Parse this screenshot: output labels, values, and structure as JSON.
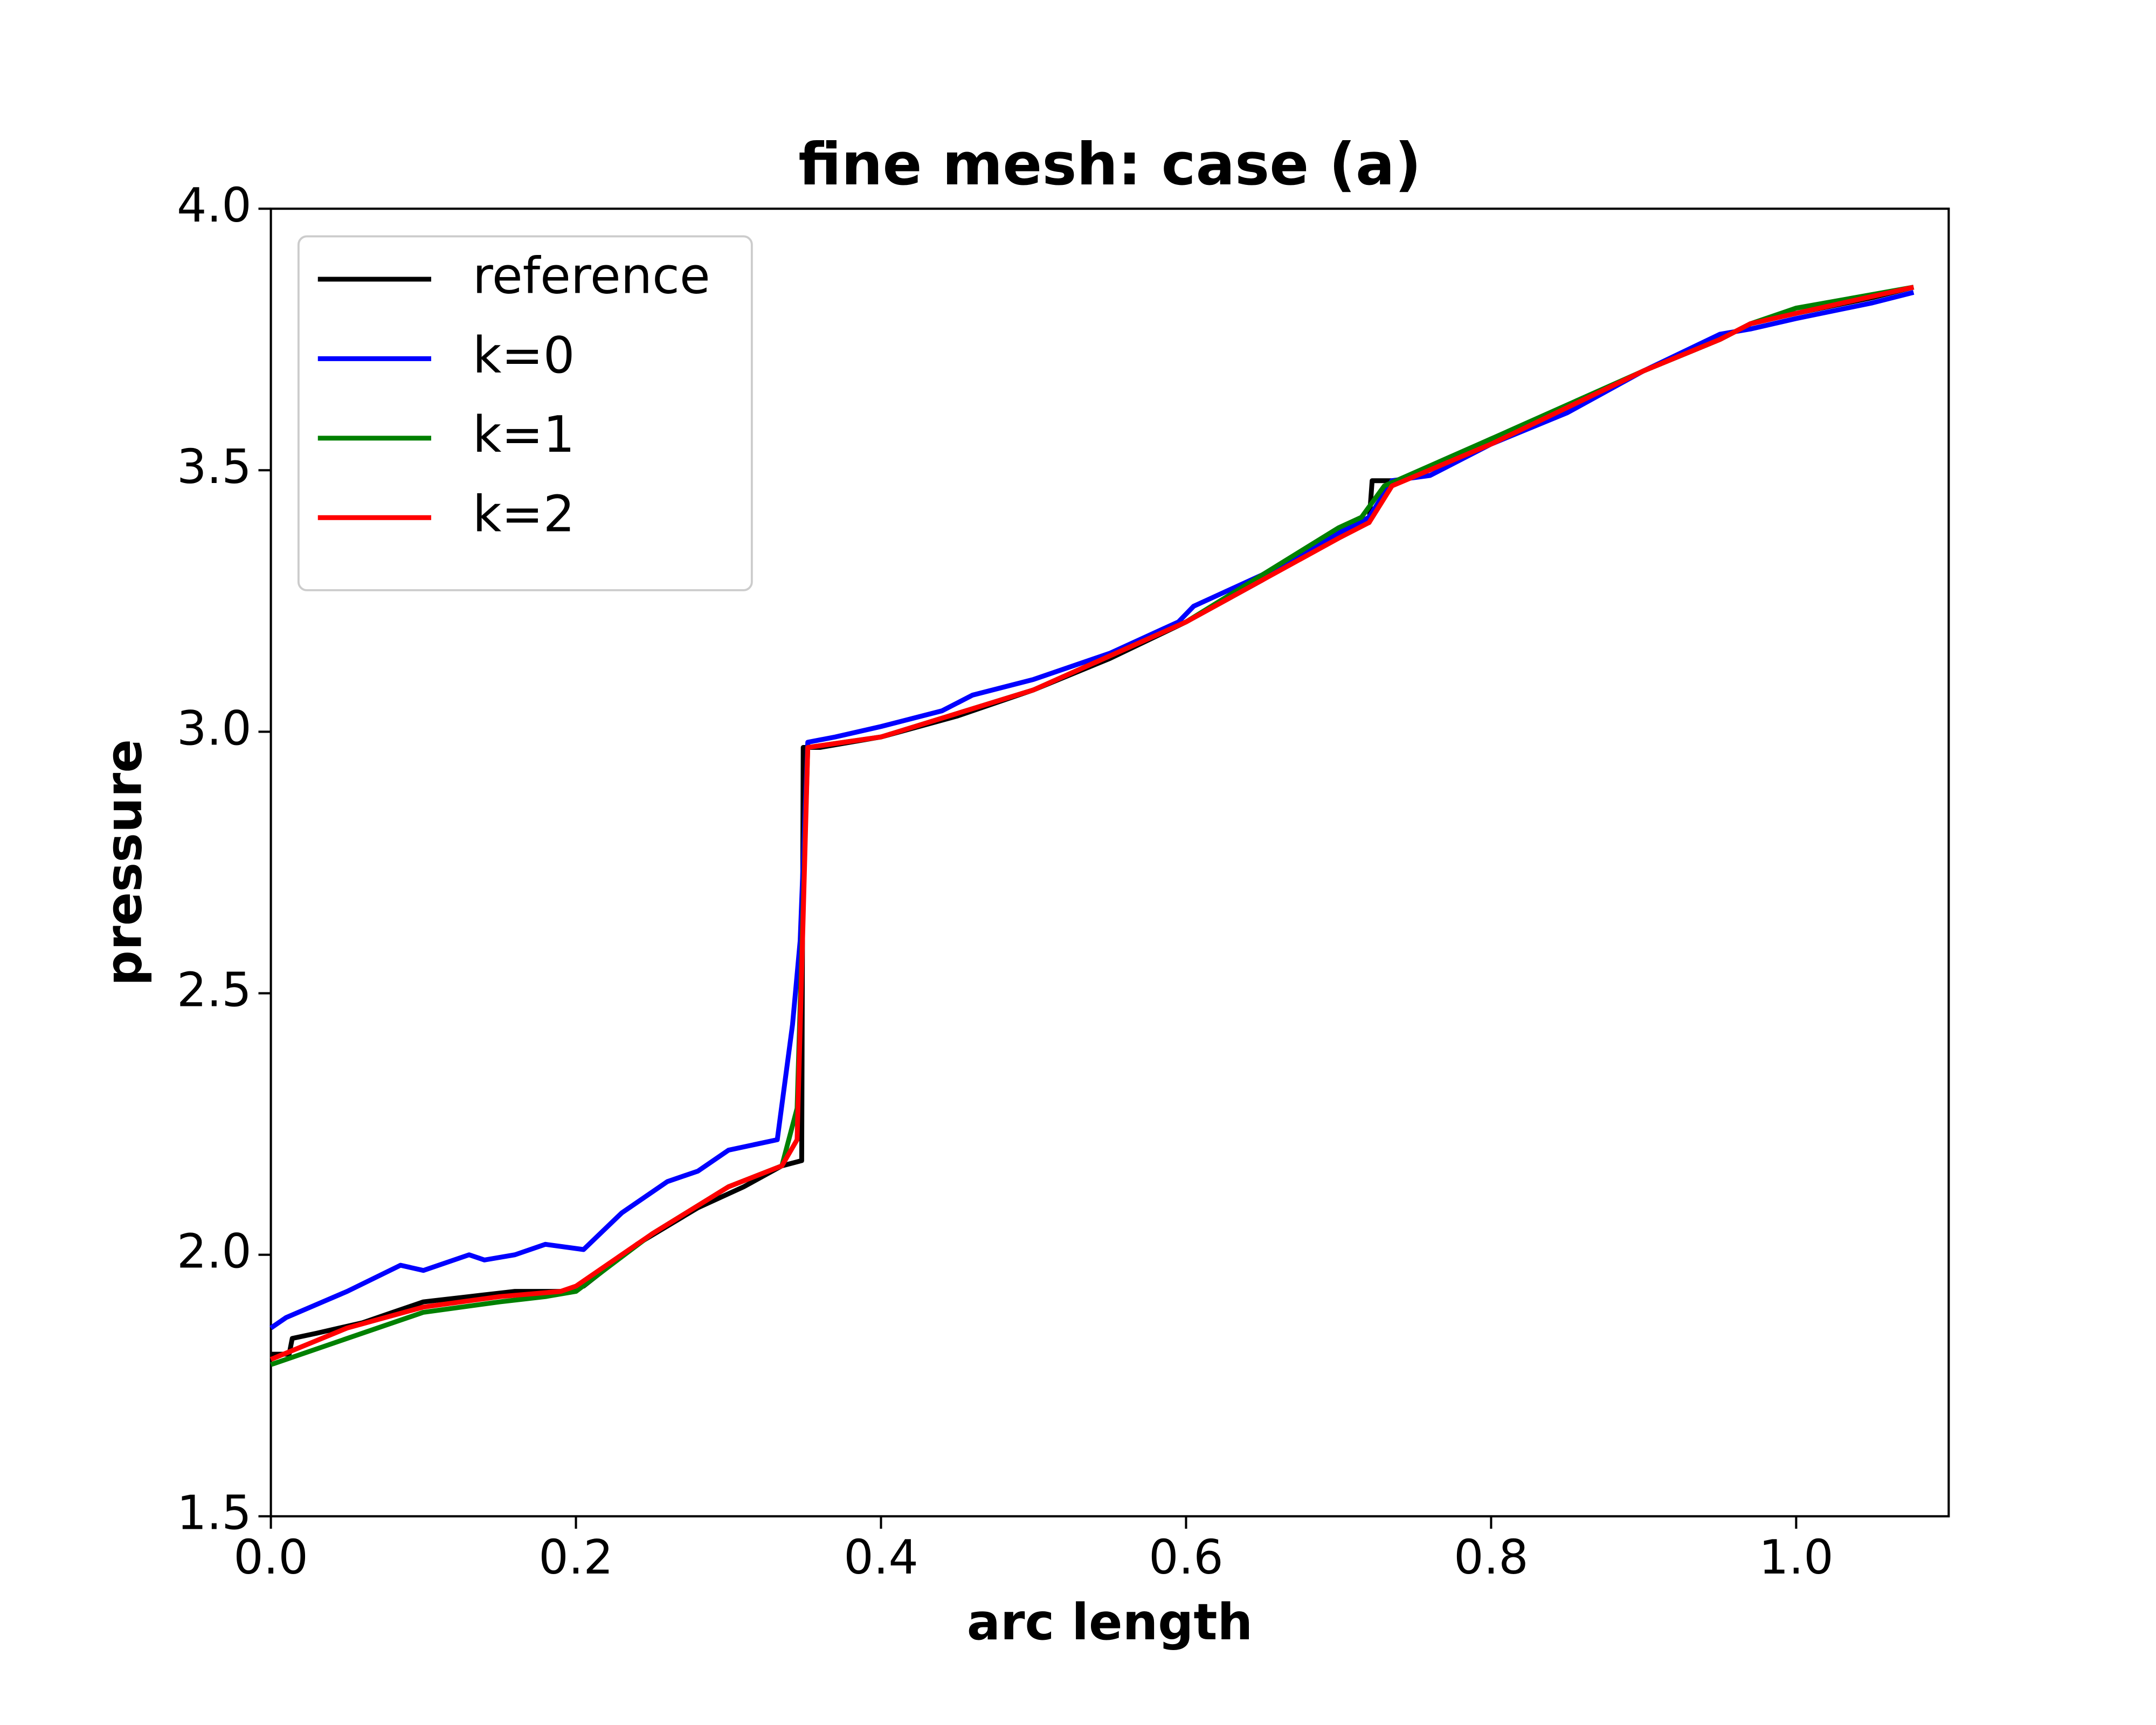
{
  "chart_data": {
    "type": "line",
    "title": "fine mesh: case (a)",
    "xlabel": "arc length",
    "ylabel": "pressure",
    "xlim": [
      0,
      1.1
    ],
    "ylim": [
      1.5,
      4.0
    ],
    "xticks": [
      {
        "value": 0,
        "label": "0.0"
      },
      0.2,
      0.4,
      0.6,
      0.8,
      {
        "value": 1,
        "label": "1.0"
      }
    ],
    "yticks": [
      1.5,
      {
        "value": 2,
        "label": "2.0"
      },
      2.5,
      {
        "value": 3,
        "label": "3.0"
      },
      3.5,
      {
        "value": 4,
        "label": "4.0"
      }
    ],
    "grid": false,
    "legend": "upper left",
    "series": [
      {
        "name": "reference",
        "color": "#000000",
        "x": [
          0,
          0.012,
          0.014,
          0.03,
          0.045,
          0.06,
          0.08,
          0.1,
          0.13,
          0.16,
          0.19,
          0.205,
          0.24,
          0.28,
          0.31,
          0.335,
          0.348,
          0.349,
          0.36,
          0.4,
          0.45,
          0.5,
          0.55,
          0.6,
          0.65,
          0.7,
          0.72,
          0.722,
          0.74,
          0.8,
          0.85,
          0.9,
          0.95,
          0.97,
          1.0,
          1.05,
          1.077
        ],
        "values": [
          1.81,
          1.81,
          1.84,
          1.85,
          1.86,
          1.87,
          1.89,
          1.91,
          1.92,
          1.93,
          1.93,
          1.94,
          2.02,
          2.09,
          2.13,
          2.17,
          2.18,
          2.97,
          2.97,
          2.99,
          3.03,
          3.08,
          3.14,
          3.21,
          3.29,
          3.38,
          3.4,
          3.48,
          3.48,
          3.56,
          3.62,
          3.69,
          3.75,
          3.78,
          3.8,
          3.83,
          3.85
        ]
      },
      {
        "name": "k=0",
        "color": "#0000ff",
        "x": [
          0,
          0.01,
          0.05,
          0.085,
          0.1,
          0.13,
          0.14,
          0.16,
          0.18,
          0.205,
          0.23,
          0.26,
          0.28,
          0.3,
          0.332,
          0.342,
          0.347,
          0.352,
          0.37,
          0.4,
          0.44,
          0.46,
          0.5,
          0.55,
          0.595,
          0.605,
          0.65,
          0.7,
          0.72,
          0.735,
          0.76,
          0.8,
          0.85,
          0.9,
          0.95,
          0.97,
          1.0,
          1.05,
          1.077
        ],
        "values": [
          1.86,
          1.88,
          1.93,
          1.98,
          1.97,
          2.0,
          1.99,
          2.0,
          2.02,
          2.01,
          2.08,
          2.14,
          2.16,
          2.2,
          2.22,
          2.44,
          2.6,
          2.98,
          2.99,
          3.01,
          3.04,
          3.07,
          3.1,
          3.15,
          3.21,
          3.24,
          3.3,
          3.38,
          3.41,
          3.48,
          3.49,
          3.55,
          3.61,
          3.69,
          3.76,
          3.77,
          3.79,
          3.82,
          3.84
        ]
      },
      {
        "name": "k=1",
        "color": "#008000",
        "x": [
          0,
          0.05,
          0.1,
          0.15,
          0.18,
          0.2,
          0.25,
          0.3,
          0.335,
          0.345,
          0.352,
          0.4,
          0.5,
          0.6,
          0.7,
          0.715,
          0.73,
          0.8,
          0.9,
          0.95,
          0.97,
          1.0,
          1.077
        ],
        "values": [
          1.79,
          1.84,
          1.89,
          1.91,
          1.92,
          1.93,
          2.04,
          2.13,
          2.17,
          2.28,
          2.97,
          2.99,
          3.08,
          3.21,
          3.39,
          3.41,
          3.47,
          3.56,
          3.69,
          3.75,
          3.78,
          3.81,
          3.85
        ]
      },
      {
        "name": "k=2",
        "color": "#ff0000",
        "x": [
          0,
          0.05,
          0.1,
          0.15,
          0.19,
          0.2,
          0.25,
          0.3,
          0.335,
          0.345,
          0.352,
          0.4,
          0.5,
          0.6,
          0.7,
          0.72,
          0.735,
          0.8,
          0.9,
          0.95,
          0.97,
          1.0,
          1.077
        ],
        "values": [
          1.8,
          1.86,
          1.9,
          1.92,
          1.93,
          1.94,
          2.04,
          2.13,
          2.17,
          2.22,
          2.97,
          2.99,
          3.08,
          3.21,
          3.37,
          3.4,
          3.47,
          3.55,
          3.69,
          3.75,
          3.78,
          3.8,
          3.85
        ]
      }
    ]
  }
}
